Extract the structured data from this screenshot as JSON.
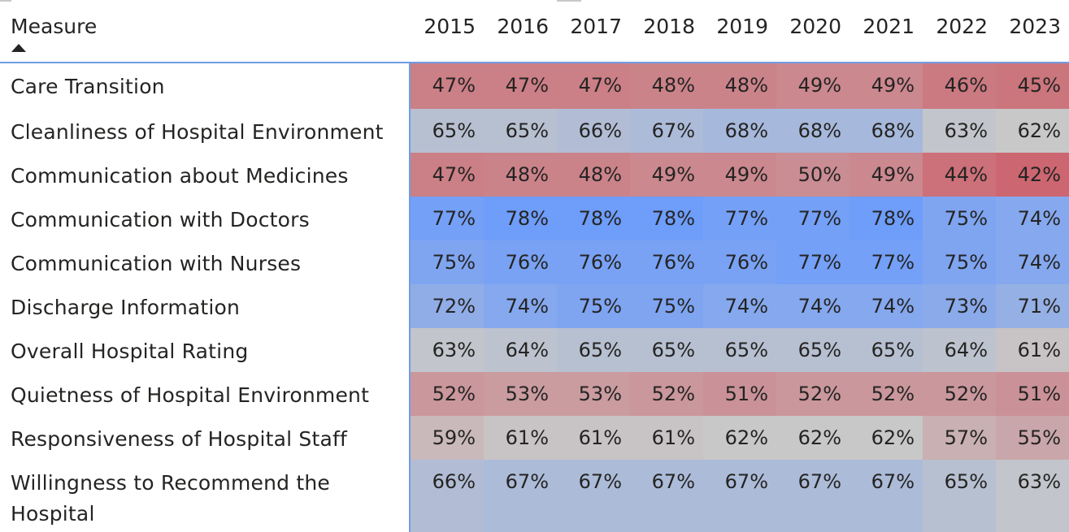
{
  "chart_data": {
    "type": "heatmap",
    "title": "",
    "xlabel": "",
    "ylabel": "",
    "row_header": "Measure",
    "sort": "measure-ascending",
    "columns": [
      "2015",
      "2016",
      "2017",
      "2018",
      "2019",
      "2020",
      "2021",
      "2022",
      "2023"
    ],
    "rows": [
      {
        "label": "Care Transition",
        "values": [
          47,
          47,
          47,
          48,
          48,
          49,
          49,
          46,
          45
        ]
      },
      {
        "label": "Cleanliness of Hospital Environment",
        "values": [
          65,
          65,
          66,
          67,
          68,
          68,
          68,
          63,
          62
        ]
      },
      {
        "label": "Communication about Medicines",
        "values": [
          47,
          48,
          48,
          49,
          49,
          50,
          49,
          44,
          42
        ]
      },
      {
        "label": "Communication with Doctors",
        "values": [
          77,
          78,
          78,
          78,
          77,
          77,
          78,
          75,
          74
        ]
      },
      {
        "label": "Communication with Nurses",
        "values": [
          75,
          76,
          76,
          76,
          76,
          77,
          77,
          75,
          74
        ]
      },
      {
        "label": "Discharge Information",
        "values": [
          72,
          74,
          75,
          75,
          74,
          74,
          74,
          73,
          71
        ]
      },
      {
        "label": "Overall Hospital Rating",
        "values": [
          63,
          64,
          65,
          65,
          65,
          65,
          65,
          64,
          61
        ]
      },
      {
        "label": "Quietness of Hospital Environment",
        "values": [
          52,
          53,
          53,
          52,
          51,
          52,
          52,
          52,
          51
        ]
      },
      {
        "label": "Responsiveness of Hospital Staff",
        "values": [
          59,
          61,
          61,
          61,
          62,
          62,
          62,
          57,
          55
        ]
      },
      {
        "label": "Willingness to Recommend the Hospital",
        "values": [
          66,
          67,
          67,
          67,
          67,
          67,
          67,
          65,
          63
        ]
      }
    ],
    "value_suffix": "%",
    "color_scale": {
      "low": "#cc6670",
      "mid": "#c8c8c8",
      "high": "#6e9dfa"
    }
  }
}
